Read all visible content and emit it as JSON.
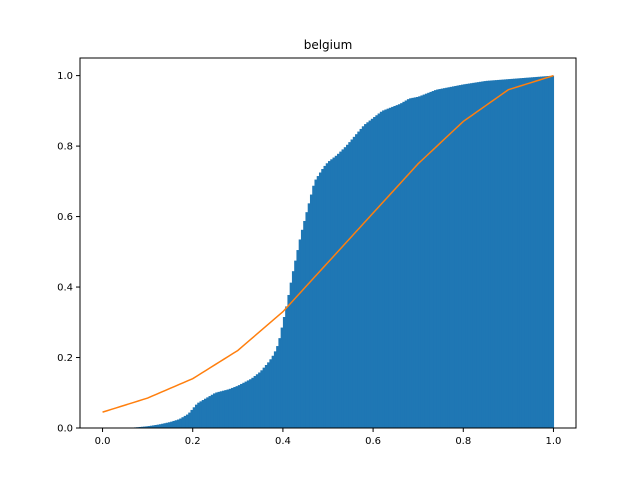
{
  "chart_data": {
    "type": "bar",
    "title": "belgium",
    "xlabel": "",
    "ylabel": "",
    "xlim": [
      -0.05,
      1.05
    ],
    "ylim": [
      0.0,
      1.05
    ],
    "xticks": [
      0.0,
      0.2,
      0.4,
      0.6,
      0.8,
      1.0
    ],
    "xtick_labels": [
      "0.0",
      "0.2",
      "0.4",
      "0.6",
      "0.8",
      "1.0"
    ],
    "yticks": [
      0.0,
      0.2,
      0.4,
      0.6,
      0.8,
      1.0
    ],
    "ytick_labels": [
      "0.0",
      "0.2",
      "0.4",
      "0.6",
      "0.8",
      "1.0"
    ],
    "grid": false,
    "legend": "none",
    "series": [
      {
        "kind": "cumulative-histogram",
        "color": "#1f77b4",
        "x": [
          0.0,
          0.05,
          0.075,
          0.1,
          0.125,
          0.15,
          0.17,
          0.19,
          0.2,
          0.21,
          0.23,
          0.25,
          0.28,
          0.3,
          0.33,
          0.35,
          0.37,
          0.38,
          0.39,
          0.4,
          0.41,
          0.42,
          0.43,
          0.44,
          0.45,
          0.46,
          0.47,
          0.48,
          0.49,
          0.5,
          0.52,
          0.54,
          0.56,
          0.58,
          0.6,
          0.62,
          0.64,
          0.66,
          0.68,
          0.7,
          0.72,
          0.74,
          0.76,
          0.78,
          0.8,
          0.85,
          0.9,
          0.95,
          1.0
        ],
        "y": [
          0.0,
          0.0,
          0.002,
          0.005,
          0.01,
          0.017,
          0.025,
          0.04,
          0.055,
          0.07,
          0.085,
          0.1,
          0.11,
          0.12,
          0.14,
          0.16,
          0.19,
          0.21,
          0.24,
          0.3,
          0.36,
          0.43,
          0.49,
          0.55,
          0.6,
          0.65,
          0.7,
          0.72,
          0.74,
          0.755,
          0.775,
          0.8,
          0.83,
          0.86,
          0.88,
          0.9,
          0.91,
          0.92,
          0.935,
          0.94,
          0.95,
          0.96,
          0.965,
          0.97,
          0.975,
          0.985,
          0.99,
          0.995,
          1.0
        ]
      },
      {
        "kind": "line",
        "color": "#ff7f0e",
        "x": [
          0.0,
          0.1,
          0.2,
          0.3,
          0.4,
          0.5,
          0.6,
          0.7,
          0.8,
          0.9,
          1.0
        ],
        "y": [
          0.045,
          0.085,
          0.14,
          0.22,
          0.33,
          0.47,
          0.61,
          0.75,
          0.87,
          0.96,
          1.0
        ]
      }
    ]
  }
}
